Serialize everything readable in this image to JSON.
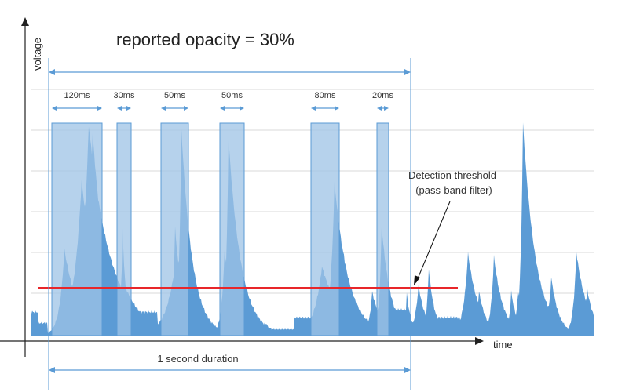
{
  "title": "reported opacity = 30%",
  "axes": {
    "y_label": "voltage",
    "x_label": "time"
  },
  "duration_label": "1 second duration",
  "pulses": [
    {
      "label": "120ms"
    },
    {
      "label": "30ms"
    },
    {
      "label": "50ms"
    },
    {
      "label": "50ms"
    },
    {
      "label": "80ms"
    },
    {
      "label": "20ms"
    }
  ],
  "threshold": {
    "line1": "Detection threshold",
    "line2": "(pass-band filter)",
    "color": "#e8262a"
  },
  "colors": {
    "signal": "#5b9bd5",
    "pulse_box": "#9dc3e6",
    "bracket": "#5b9bd5",
    "grid": "#d9d9d9",
    "axis": "#222222"
  }
}
